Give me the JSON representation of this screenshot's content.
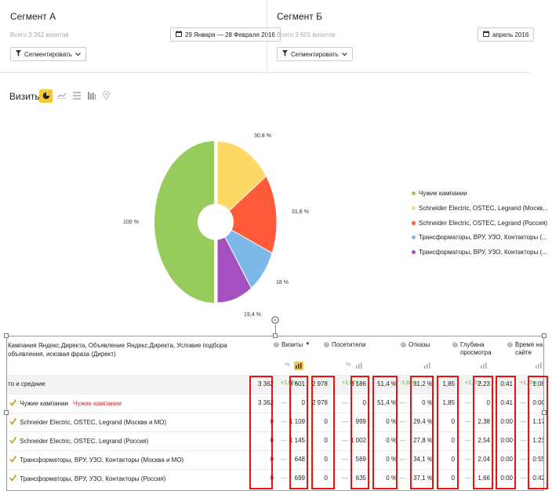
{
  "segment_a": {
    "title": "Сегмент А",
    "total_visits": "Всего 3 362 визитов",
    "date_range": "29 Января — 28 Февраля 2016",
    "segment_button": "Сегментировать"
  },
  "segment_b": {
    "title": "Сегмент Б",
    "total_visits": "Всего 3 601 визитов",
    "date_range": "апрель 2016",
    "segment_button": "Сегментировать"
  },
  "visits_label": "Визиты",
  "icons": {
    "calendar": "calendar-icon",
    "filter": "filter-icon",
    "chevron": "chevron-down-icon",
    "pie": "pie-chart-icon",
    "line": "line-chart-icon",
    "bars": "bar-chart-icon",
    "table": "table-chart-icon",
    "map": "map-icon"
  },
  "chart_data": {
    "type": "pie",
    "title": "",
    "slices": [
      {
        "label": "Чужие кампании",
        "value": 100,
        "display": "100 %",
        "color": "#97cb5c"
      },
      {
        "label": "Schneider Electric, OSTEC, Legrand (Москв...",
        "value": 30.8,
        "display": "30,8 %",
        "color": "#ffd966"
      },
      {
        "label": "Schneider Electric, OSTEC, Legrand (Россия)",
        "value": 31.8,
        "display": "31,8 %",
        "color": "#ff5b3b"
      },
      {
        "label": "Трансформаторы, ВРУ, УЗО, Контакторы (...",
        "value": 18,
        "display": "18 %",
        "color": "#7cb8e8"
      },
      {
        "label": "Трансформаторы, ВРУ, УЗО, Контакторы (...",
        "value": 19.4,
        "display": "19,4 %",
        "color": "#a64fbf"
      }
    ],
    "legend_position": "right"
  },
  "table": {
    "dimension_header": "Кампания Яндекс.Директа, Объявление Яндекс.Директа, Условие подбора объявления, исковая фраза (Директ)",
    "columns": {
      "visits": "Визиты",
      "visitors": "Посетители",
      "bounces": "Отказы",
      "depth": "Глубина просмотра",
      "time": "Время на сайте"
    },
    "percent_label": "%",
    "rows": [
      {
        "label": "то и средние",
        "sub": "",
        "visits_a": "3 362",
        "visits_b": "3 601",
        "visits_d": "+1,07x",
        "visitors_a": "2 978",
        "visitors_b": "3 186",
        "visitors_d": "+1,07x",
        "bounces_a": "51,4 %",
        "bounces_b": "31,2 %",
        "bounces_d": "-1,65x",
        "depth_a": "1,85",
        "depth_b": "2,23",
        "depth_d": "+1,20x",
        "time_a": "0:41",
        "time_b": "1:08",
        "time_d": "+1,65x"
      },
      {
        "label": "Чужие кампании",
        "sub": "Чужие кампании",
        "visits_a": "3 362",
        "visits_b": "0",
        "visits_d": "—",
        "visitors_a": "2 978",
        "visitors_b": "0",
        "visitors_d": "—",
        "bounces_a": "51,4 %",
        "bounces_b": "0 %",
        "bounces_d": "—",
        "depth_a": "1,85",
        "depth_b": "0",
        "depth_d": "—",
        "time_a": "0:41",
        "time_b": "0:00",
        "time_d": "—"
      },
      {
        "label": "Schneider Electric, OSTEC, Legrand (Москва и МО)",
        "sub": "",
        "visits_a": "0",
        "visits_b": "1 109",
        "visits_d": "—",
        "visitors_a": "0",
        "visitors_b": "999",
        "visitors_d": "—",
        "bounces_a": "0 %",
        "bounces_b": "29,4 %",
        "bounces_d": "—",
        "depth_a": "0",
        "depth_b": "2,38",
        "depth_d": "—",
        "time_a": "0:00",
        "time_b": "1:17",
        "time_d": "—"
      },
      {
        "label": "Schneider Electric, OSTEC, Legrand (Россия)",
        "sub": "",
        "visits_a": "0",
        "visits_b": "1 145",
        "visits_d": "—",
        "visitors_a": "0",
        "visitors_b": "1 002",
        "visitors_d": "—",
        "bounces_a": "0 %",
        "bounces_b": "27,8 %",
        "bounces_d": "—",
        "depth_a": "0",
        "depth_b": "2,54",
        "depth_d": "—",
        "time_a": "0:00",
        "time_b": "1:23",
        "time_d": "—"
      },
      {
        "label": "Трансформаторы, ВРУ, УЗО, Контакторы (Москва и МО)",
        "sub": "",
        "visits_a": "0",
        "visits_b": "648",
        "visits_d": "—",
        "visitors_a": "0",
        "visitors_b": "569",
        "visitors_d": "—",
        "bounces_a": "0 %",
        "bounces_b": "34,1 %",
        "bounces_d": "—",
        "depth_a": "0",
        "depth_b": "2,04",
        "depth_d": "—",
        "time_a": "0:00",
        "time_b": "0:55",
        "time_d": "—"
      },
      {
        "label": "Трансформаторы, ВРУ, УЗО, Контакторы (Россия)",
        "sub": "",
        "visits_a": "0",
        "visits_b": "699",
        "visits_d": "—",
        "visitors_a": "0",
        "visitors_b": "635",
        "visitors_d": "—",
        "bounces_a": "0 %",
        "bounces_b": "37,1 %",
        "bounces_d": "—",
        "depth_a": "0",
        "depth_b": "1,66",
        "depth_d": "—",
        "time_a": "0:00",
        "time_b": "0:42",
        "time_d": "—"
      }
    ]
  },
  "colors": {
    "accent_yellow": "#f5c83a",
    "highlight_red": "#e11111",
    "positive_green": "#4caf30",
    "sub_red": "#d42a2a"
  }
}
